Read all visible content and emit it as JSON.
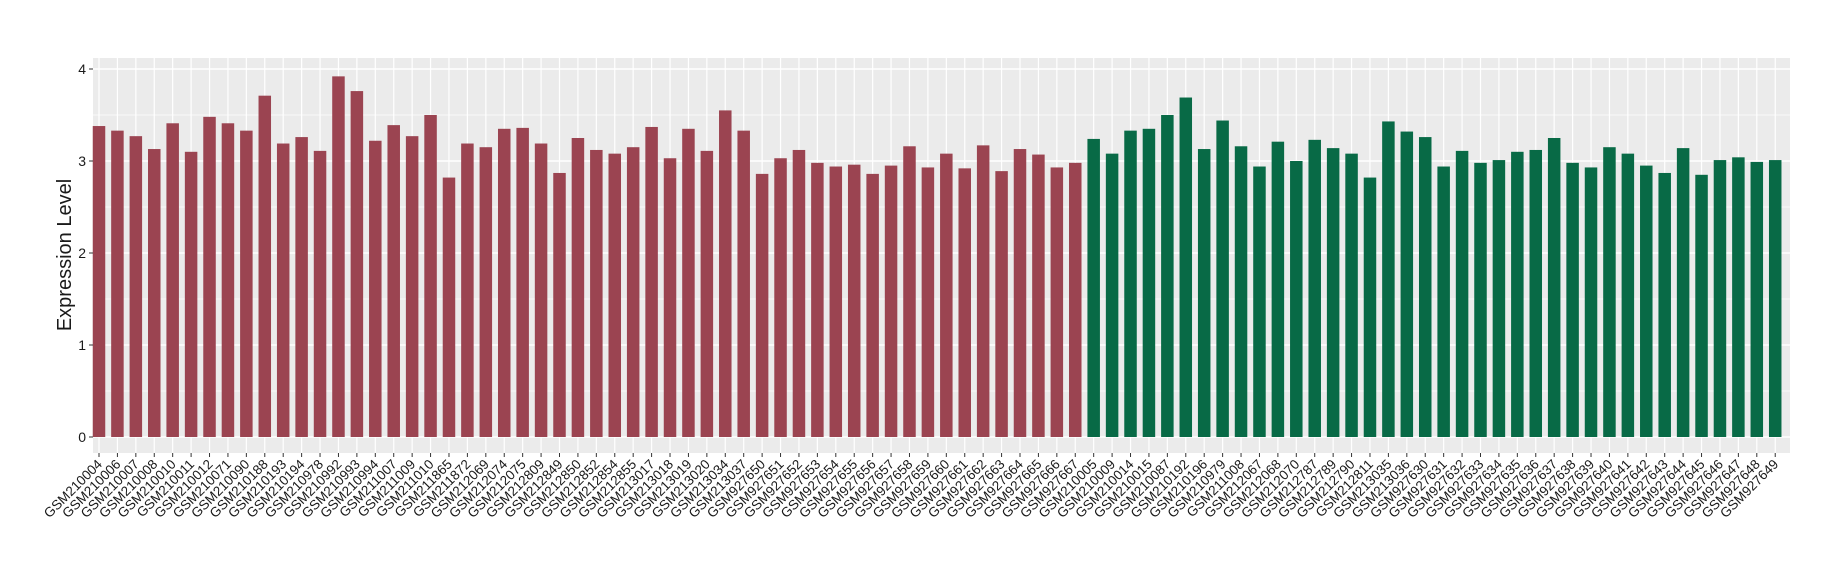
{
  "chart_data": {
    "type": "bar",
    "title": "",
    "xlabel": "",
    "ylabel": "Expression Level",
    "ylim": [
      0,
      4.15
    ],
    "yticks": [
      0,
      1,
      2,
      3,
      4
    ],
    "grid": true,
    "legend": "none",
    "colors": {
      "group1": "#9b4451",
      "group2": "#086a46",
      "panel": "#ebebeb",
      "grid": "#ffffff"
    },
    "series": [
      {
        "color": "#9b4451",
        "categories": [
          "GSM210004",
          "GSM210006",
          "GSM210007",
          "GSM210008",
          "GSM210010",
          "GSM210011",
          "GSM210012",
          "GSM210071",
          "GSM210090",
          "GSM210188",
          "GSM210193",
          "GSM210194",
          "GSM210978",
          "GSM210992",
          "GSM210993",
          "GSM210994",
          "GSM211007",
          "GSM211009",
          "GSM211010",
          "GSM211865",
          "GSM211872",
          "GSM212069",
          "GSM212074",
          "GSM212075",
          "GSM212809",
          "GSM212849",
          "GSM212850",
          "GSM212852",
          "GSM212854",
          "GSM212855",
          "GSM213017",
          "GSM213018",
          "GSM213019",
          "GSM213020",
          "GSM213034",
          "GSM213037",
          "GSM927650",
          "GSM927651",
          "GSM927652",
          "GSM927653",
          "GSM927654",
          "GSM927655",
          "GSM927656",
          "GSM927657",
          "GSM927658",
          "GSM927659",
          "GSM927660",
          "GSM927661",
          "GSM927662",
          "GSM927663",
          "GSM927664",
          "GSM927665",
          "GSM927666",
          "GSM927667"
        ],
        "values": [
          3.38,
          3.33,
          3.27,
          3.13,
          3.41,
          3.1,
          3.48,
          3.41,
          3.33,
          3.71,
          3.19,
          3.26,
          3.11,
          3.92,
          3.76,
          3.22,
          3.39,
          3.27,
          3.5,
          2.82,
          3.19,
          3.15,
          3.35,
          3.36,
          3.19,
          2.87,
          3.25,
          3.12,
          3.08,
          3.15,
          3.37,
          3.03,
          3.35,
          3.11,
          3.55,
          3.33,
          2.86,
          3.03,
          3.12,
          2.98,
          2.94,
          2.96,
          2.86,
          2.95,
          3.16,
          2.93,
          3.08,
          2.92,
          3.17,
          2.89,
          3.13,
          3.07,
          2.93,
          2.98
        ]
      },
      {
        "color": "#086a46",
        "categories": [
          "GSM210005",
          "GSM210009",
          "GSM210014",
          "GSM210015",
          "GSM210087",
          "GSM210192",
          "GSM210196",
          "GSM210979",
          "GSM211008",
          "GSM212067",
          "GSM212068",
          "GSM212070",
          "GSM212787",
          "GSM212789",
          "GSM212790",
          "GSM212811",
          "GSM213035",
          "GSM213036",
          "GSM927630",
          "GSM927631",
          "GSM927632",
          "GSM927633",
          "GSM927634",
          "GSM927635",
          "GSM927636",
          "GSM927637",
          "GSM927638",
          "GSM927639",
          "GSM927640",
          "GSM927641",
          "GSM927642",
          "GSM927643",
          "GSM927644",
          "GSM927645",
          "GSM927646",
          "GSM927647",
          "GSM927648",
          "GSM927649"
        ],
        "values": [
          3.24,
          3.08,
          3.33,
          3.35,
          3.5,
          3.69,
          3.13,
          3.44,
          3.16,
          2.94,
          3.21,
          3.0,
          3.23,
          3.14,
          3.08,
          2.82,
          3.43,
          3.32,
          3.26,
          2.94,
          3.11,
          2.98,
          3.01,
          3.1,
          3.12,
          3.25,
          2.98,
          2.93,
          3.15,
          3.08,
          2.95,
          2.87,
          3.14,
          2.85,
          3.01,
          3.04,
          2.99,
          3.01
        ]
      }
    ]
  }
}
